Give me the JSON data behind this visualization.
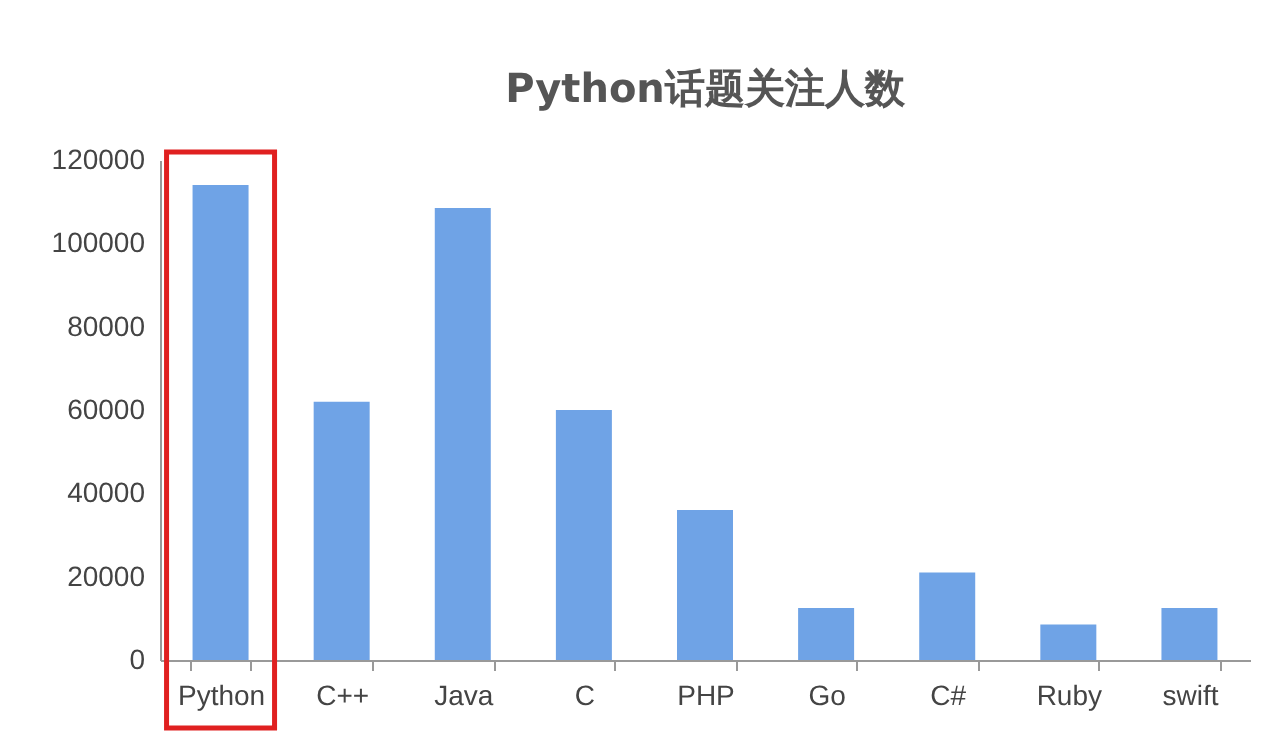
{
  "chart_data": {
    "type": "bar",
    "title": "Python话题关注人数",
    "categories": [
      "Python",
      "C++",
      "Java",
      "C",
      "PHP",
      "Go",
      "C#",
      "Ruby",
      "swift"
    ],
    "values": [
      114000,
      62000,
      108500,
      60000,
      36000,
      12500,
      21000,
      8500,
      12500
    ],
    "color": "#6fa3e6",
    "ylim": [
      0,
      120000
    ],
    "yticks": [
      0,
      20000,
      40000,
      60000,
      80000,
      100000,
      120000
    ],
    "grid": false
  }
}
